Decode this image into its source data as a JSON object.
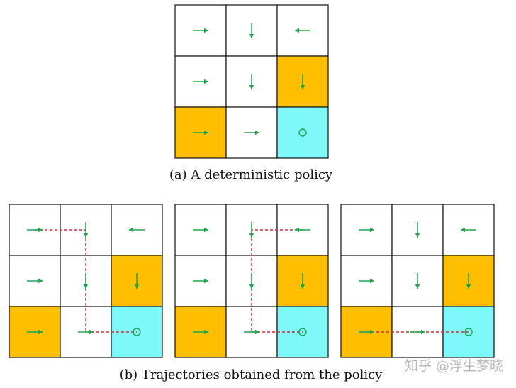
{
  "colors": {
    "white": "#ffffff",
    "orange": "#ffbf00",
    "cyan": "#7ef8f8",
    "border": "#111111",
    "arrow": "#1fa54a",
    "trajectory": "#cc3333"
  },
  "top_grid": {
    "cells": [
      [
        "white",
        "white",
        "white"
      ],
      [
        "white",
        "white",
        "orange"
      ],
      [
        "orange",
        "white",
        "cyan"
      ]
    ],
    "actions": [
      [
        "right",
        "down",
        "left"
      ],
      [
        "right",
        "down",
        "down"
      ],
      [
        "right",
        "right",
        "stay"
      ]
    ],
    "caption": "(a) A deterministic policy"
  },
  "bottom_grids": [
    {
      "cells": [
        [
          "white",
          "white",
          "white"
        ],
        [
          "white",
          "white",
          "orange"
        ],
        [
          "orange",
          "white",
          "cyan"
        ]
      ],
      "actions": [
        [
          "right",
          "down",
          "left"
        ],
        [
          "right",
          "down",
          "down"
        ],
        [
          "right",
          "right",
          "stay"
        ]
      ],
      "trajectory": [
        [
          0,
          0
        ],
        [
          0,
          1
        ],
        [
          1,
          1
        ],
        [
          2,
          1
        ],
        [
          2,
          2
        ]
      ]
    },
    {
      "cells": [
        [
          "white",
          "white",
          "white"
        ],
        [
          "white",
          "white",
          "orange"
        ],
        [
          "orange",
          "white",
          "cyan"
        ]
      ],
      "actions": [
        [
          "right",
          "down",
          "left"
        ],
        [
          "right",
          "down",
          "down"
        ],
        [
          "right",
          "right",
          "stay"
        ]
      ],
      "trajectory": [
        [
          0,
          2
        ],
        [
          0,
          1
        ],
        [
          1,
          1
        ],
        [
          2,
          1
        ],
        [
          2,
          2
        ]
      ]
    },
    {
      "cells": [
        [
          "white",
          "white",
          "white"
        ],
        [
          "white",
          "white",
          "orange"
        ],
        [
          "orange",
          "white",
          "cyan"
        ]
      ],
      "actions": [
        [
          "right",
          "down",
          "left"
        ],
        [
          "right",
          "down",
          "down"
        ],
        [
          "right",
          "right",
          "stay"
        ]
      ],
      "trajectory": [
        [
          2,
          0
        ],
        [
          2,
          1
        ],
        [
          2,
          2
        ]
      ]
    }
  ],
  "bottom_caption": "(b) Trajectories obtained from the policy",
  "watermark": "知乎 @浮生梦晓"
}
